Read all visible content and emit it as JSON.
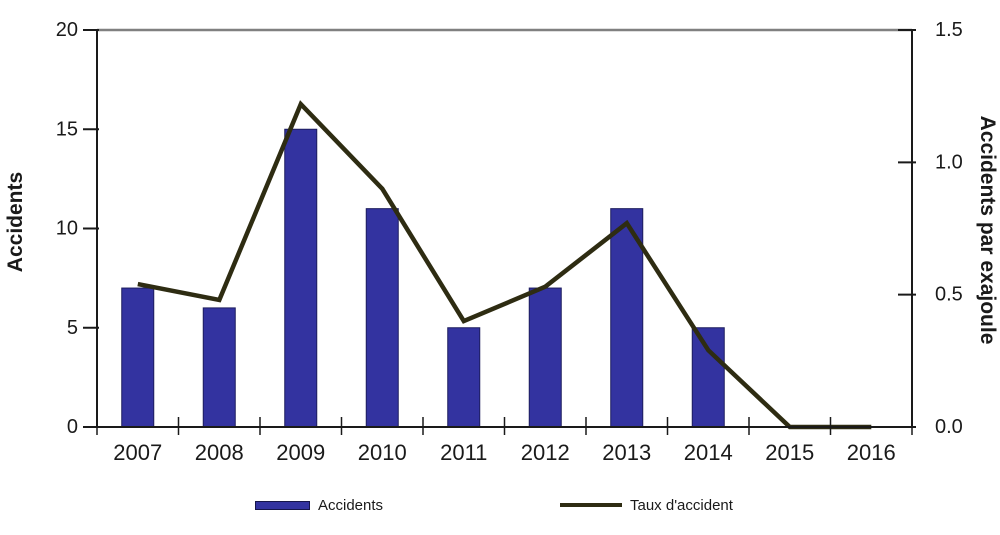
{
  "chart_data": {
    "type": "combo-bar-line",
    "categories": [
      "2007",
      "2008",
      "2009",
      "2010",
      "2011",
      "2012",
      "2013",
      "2014",
      "2015",
      "2016"
    ],
    "series": [
      {
        "name": "Accidents",
        "type": "bar",
        "axis": "left",
        "values": [
          7,
          6,
          15,
          11,
          5,
          7,
          11,
          5,
          0,
          0
        ],
        "color": "#3333A0",
        "border_color": "#1C1C5E"
      },
      {
        "name": "Taux d'accident",
        "type": "line",
        "axis": "right",
        "values": [
          0.54,
          0.48,
          1.22,
          0.9,
          0.4,
          0.53,
          0.77,
          0.29,
          0.0,
          0.0
        ],
        "color": "#2E2C12"
      }
    ],
    "left_axis": {
      "label": "Accidents",
      "min": 0,
      "max": 20,
      "ticks": [
        0,
        5,
        10,
        15,
        20
      ],
      "tick_labels": [
        "0",
        "5",
        "10",
        "15",
        "20"
      ]
    },
    "right_axis": {
      "label": "Accidents par exajoule",
      "min": 0,
      "max": 1.5,
      "ticks": [
        0.0,
        0.5,
        1.0,
        1.5
      ],
      "tick_labels": [
        "0.0",
        "0.5",
        "1.0",
        "1.5"
      ]
    },
    "legend": {
      "position": "bottom",
      "items": [
        {
          "label": "Accidents"
        },
        {
          "label": "Taux d'accident"
        }
      ]
    },
    "grid": "off",
    "colors": {
      "axis": "#1a1a1a",
      "top_border": "#808080",
      "text": "#1a1a1a"
    }
  }
}
